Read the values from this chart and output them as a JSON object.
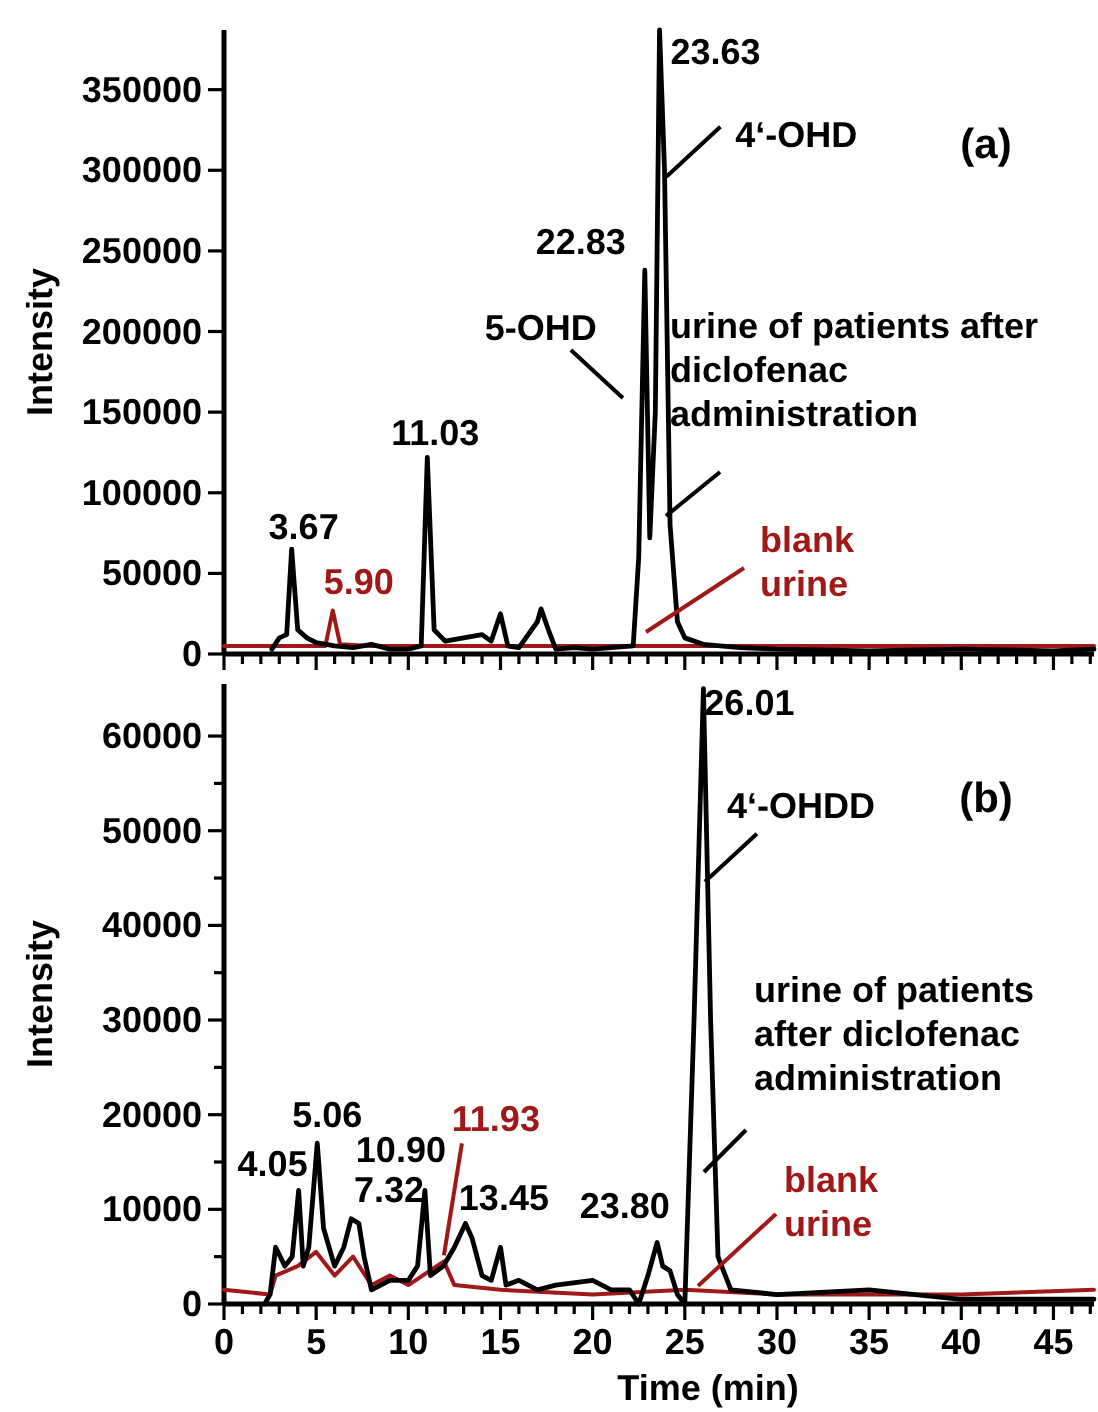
{
  "chart_data": [
    {
      "type": "line",
      "ylabel": "Intensity",
      "xlim": [
        0,
        47.2
      ],
      "ylim": [
        0,
        387000
      ],
      "xticks": [
        0,
        {
          "value": 1,
          "label": null
        },
        {
          "value": 2,
          "label": null
        },
        {
          "value": 3,
          "label": null
        },
        {
          "value": 4,
          "label": null
        },
        5,
        {
          "value": 6,
          "label": null
        },
        {
          "value": 7,
          "label": null
        },
        {
          "value": 8,
          "label": null
        },
        {
          "value": 9,
          "label": null
        },
        10,
        {
          "value": 11,
          "label": null
        },
        {
          "value": 12,
          "label": null
        },
        {
          "value": 13,
          "label": null
        },
        {
          "value": 14,
          "label": null
        },
        15,
        {
          "value": 16,
          "label": null
        },
        {
          "value": 17,
          "label": null
        },
        {
          "value": 18,
          "label": null
        },
        {
          "value": 19,
          "label": null
        },
        20,
        {
          "value": 21,
          "label": null
        },
        {
          "value": 22,
          "label": null
        },
        {
          "value": 23,
          "label": null
        },
        {
          "value": 24,
          "label": null
        },
        25,
        {
          "value": 26,
          "label": null
        },
        {
          "value": 27,
          "label": null
        },
        {
          "value": 28,
          "label": null
        },
        {
          "value": 29,
          "label": null
        },
        30,
        {
          "value": 31,
          "label": null
        },
        {
          "value": 32,
          "label": null
        },
        {
          "value": 33,
          "label": null
        },
        {
          "value": 34,
          "label": null
        },
        35,
        {
          "value": 36,
          "label": null
        },
        {
          "value": 37,
          "label": null
        },
        {
          "value": 38,
          "label": null
        },
        {
          "value": 39,
          "label": null
        },
        40,
        {
          "value": 41,
          "label": null
        },
        {
          "value": 42,
          "label": null
        },
        {
          "value": 43,
          "label": null
        },
        {
          "value": 44,
          "label": null
        },
        45,
        {
          "value": 46,
          "label": null
        },
        {
          "value": 47,
          "label": null
        }
      ],
      "yticks": [
        0,
        50000,
        100000,
        150000,
        200000,
        250000,
        300000,
        350000
      ],
      "tick_labels": "y",
      "series": [
        {
          "name": "blank\nurine",
          "color": "#a01818",
          "x": [
            0,
            2,
            4,
            5.5,
            5.9,
            6.3,
            8,
            10,
            13,
            16,
            20,
            25,
            30,
            35,
            40,
            47.2
          ],
          "values": [
            5000,
            5000,
            5000,
            5000,
            27000,
            6000,
            5000,
            5000,
            5000,
            5000,
            5000,
            5000,
            5000,
            5000,
            5000,
            5000
          ]
        },
        {
          "name": "urine of patients after\ndiclofenac\nadministration",
          "color": "#000000",
          "x": [
            2.6,
            3,
            3.4,
            3.67,
            4,
            4.5,
            5,
            6,
            7,
            8,
            9,
            10,
            10.7,
            11.03,
            11.4,
            12,
            13,
            14,
            14.5,
            15,
            15.4,
            16,
            17,
            17.2,
            17.6,
            18,
            19,
            20,
            21,
            22.2,
            22.5,
            22.83,
            23.1,
            23.4,
            23.63,
            23.9,
            24.2,
            24.6,
            25,
            26,
            28,
            30,
            35,
            40,
            45,
            47.2
          ],
          "values": [
            3000,
            10000,
            12000,
            65000,
            15000,
            10000,
            7000,
            5000,
            4000,
            6000,
            3000,
            3000,
            5000,
            122000,
            15000,
            8000,
            10000,
            12000,
            8000,
            25000,
            5000,
            4000,
            20000,
            28000,
            15000,
            3000,
            4000,
            3000,
            4000,
            5000,
            60000,
            238000,
            72000,
            150000,
            387000,
            300000,
            80000,
            20000,
            10000,
            6000,
            4000,
            3000,
            2000,
            3000,
            2000,
            3000
          ]
        }
      ],
      "annotations": [
        {
          "text": "3.67",
          "x": 3.67,
          "y": 65000
        },
        {
          "text": "5.90",
          "x": 5.9,
          "y": 27000
        },
        {
          "text": "11.03",
          "x": 11.03,
          "y": 122000
        },
        {
          "text": "22.83",
          "x": 22.83,
          "y": 238000
        },
        {
          "text": "23.63",
          "x": 23.63,
          "y": 387000
        },
        {
          "text": "4‘-OHD",
          "x": 24,
          "y": 296000
        },
        {
          "text": "5-OHD",
          "x": 22.4,
          "y": 160000
        },
        "(a)"
      ]
    },
    {
      "type": "line",
      "ylabel": "Intensity",
      "xlabel": "Time (min)",
      "xlim": [
        0,
        47.2
      ],
      "ylim": [
        0,
        65500
      ],
      "xticks": [
        0,
        {
          "value": 1,
          "label": null
        },
        {
          "value": 2,
          "label": null
        },
        {
          "value": 3,
          "label": null
        },
        {
          "value": 4,
          "label": null
        },
        5,
        {
          "value": 6,
          "label": null
        },
        {
          "value": 7,
          "label": null
        },
        {
          "value": 8,
          "label": null
        },
        {
          "value": 9,
          "label": null
        },
        10,
        {
          "value": 11,
          "label": null
        },
        {
          "value": 12,
          "label": null
        },
        {
          "value": 13,
          "label": null
        },
        {
          "value": 14,
          "label": null
        },
        15,
        {
          "value": 16,
          "label": null
        },
        {
          "value": 17,
          "label": null
        },
        {
          "value": 18,
          "label": null
        },
        {
          "value": 19,
          "label": null
        },
        20,
        {
          "value": 21,
          "label": null
        },
        {
          "value": 22,
          "label": null
        },
        {
          "value": 23,
          "label": null
        },
        {
          "value": 24,
          "label": null
        },
        25,
        {
          "value": 26,
          "label": null
        },
        {
          "value": 27,
          "label": null
        },
        {
          "value": 28,
          "label": null
        },
        {
          "value": 29,
          "label": null
        },
        30,
        {
          "value": 31,
          "label": null
        },
        {
          "value": 32,
          "label": null
        },
        {
          "value": 33,
          "label": null
        },
        {
          "value": 34,
          "label": null
        },
        35,
        {
          "value": 36,
          "label": null
        },
        {
          "value": 37,
          "label": null
        },
        {
          "value": 38,
          "label": null
        },
        {
          "value": 39,
          "label": null
        },
        40,
        {
          "value": 41,
          "label": null
        },
        {
          "value": 42,
          "label": null
        },
        {
          "value": 43,
          "label": null
        },
        {
          "value": 44,
          "label": null
        },
        45,
        {
          "value": 46,
          "label": null
        },
        {
          "value": 47,
          "label": null
        }
      ],
      "yticks": [
        0,
        {
          "value": 5000,
          "label": null
        },
        10000,
        {
          "value": 15000,
          "label": null
        },
        20000,
        {
          "value": 25000,
          "label": null
        },
        30000,
        {
          "value": 35000,
          "label": null
        },
        40000,
        {
          "value": 45000,
          "label": null
        },
        50000,
        {
          "value": 55000,
          "label": null
        },
        60000
      ],
      "series": [
        {
          "name": "blank\nurine",
          "color": "#a01818",
          "x": [
            0,
            2.5,
            2.8,
            4,
            5,
            6,
            7,
            8,
            9,
            10,
            11.93,
            12.5,
            15,
            20,
            25,
            30,
            40,
            47.2
          ],
          "values": [
            1500,
            1000,
            3000,
            4000,
            5500,
            3000,
            5000,
            2000,
            3000,
            2000,
            4500,
            2000,
            1500,
            1000,
            1500,
            1000,
            1000,
            1500
          ]
        },
        {
          "name": "urine of patients\nafter diclofenac\nadministration",
          "color": "#000000",
          "x": [
            2.2,
            2.5,
            2.8,
            3.3,
            3.7,
            4.05,
            4.3,
            4.6,
            5.06,
            5.4,
            6,
            6.5,
            6.9,
            7.32,
            7.6,
            8,
            9,
            10,
            10.5,
            10.9,
            11.2,
            11.9,
            12.5,
            13.1,
            13.45,
            14,
            14.5,
            15,
            15.3,
            16,
            17,
            18,
            20,
            21,
            22,
            22.5,
            23,
            23.5,
            23.8,
            24.2,
            24.6,
            25,
            25.5,
            26.01,
            26.4,
            26.8,
            27.5,
            30,
            35,
            40,
            45,
            47.2
          ],
          "values": [
            0,
            1000,
            6000,
            4000,
            5000,
            12000,
            4000,
            6000,
            17000,
            8000,
            4000,
            6000,
            9000,
            8500,
            5000,
            1500,
            2500,
            2500,
            4000,
            12000,
            3000,
            4000,
            6000,
            8500,
            7000,
            3000,
            2500,
            6000,
            2000,
            2500,
            1500,
            2000,
            2500,
            1500,
            1500,
            0,
            3000,
            6500,
            4000,
            3500,
            1000,
            0,
            30000,
            65000,
            30000,
            5000,
            1500,
            1000,
            1500,
            500,
            500,
            500
          ]
        }
      ],
      "annotations": [
        {
          "text": "4.05",
          "x": 4.05,
          "y": 12000
        },
        {
          "text": "5.06",
          "x": 5.06,
          "y": 17000
        },
        {
          "text": "7.32",
          "x": 7.32,
          "y": 8500
        },
        {
          "text": "10.90",
          "x": 10.9,
          "y": 12000
        },
        {
          "text": "11.93",
          "x": 11.93,
          "y": 4500
        },
        {
          "text": "13.45",
          "x": 13.45,
          "y": 7000
        },
        {
          "text": "23.80",
          "x": 23.8,
          "y": 6500
        },
        {
          "text": "26.01",
          "x": 26.01,
          "y": 65000
        },
        {
          "text": "4‘-OHDD",
          "x": 26.2,
          "y": 44600
        },
        "(b)"
      ]
    }
  ]
}
